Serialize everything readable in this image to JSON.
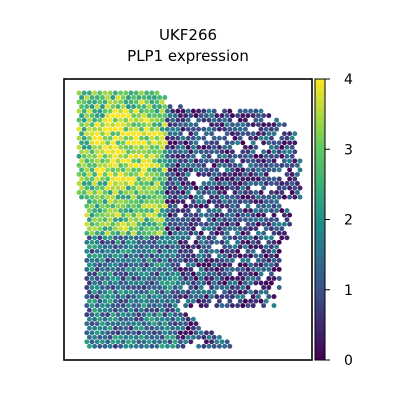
{
  "chart_data": {
    "type": "scatter",
    "subtype": "spatial-hexbin",
    "title": "UKF266",
    "subtitle": "PLP1 expression",
    "xlabel": "",
    "ylabel": "",
    "axis_ticks_visible": false,
    "grid": false,
    "colormap": "viridis",
    "colorbar": {
      "position": "right",
      "range": [
        0,
        4
      ],
      "ticks": [
        "0",
        "1",
        "2",
        "3",
        "4"
      ],
      "colors": [
        "#440154",
        "#3b528b",
        "#21918c",
        "#5ec962",
        "#fde725"
      ]
    },
    "regions": [
      {
        "name": "upper-left tissue",
        "mean_value": 3.0
      },
      {
        "name": "upper-left hotspot",
        "mean_value": 3.6
      },
      {
        "name": "lower-left tissue",
        "mean_value": 1.5
      },
      {
        "name": "right tissue",
        "mean_value": 0.9
      }
    ],
    "value_range": [
      0,
      4.1
    ]
  }
}
